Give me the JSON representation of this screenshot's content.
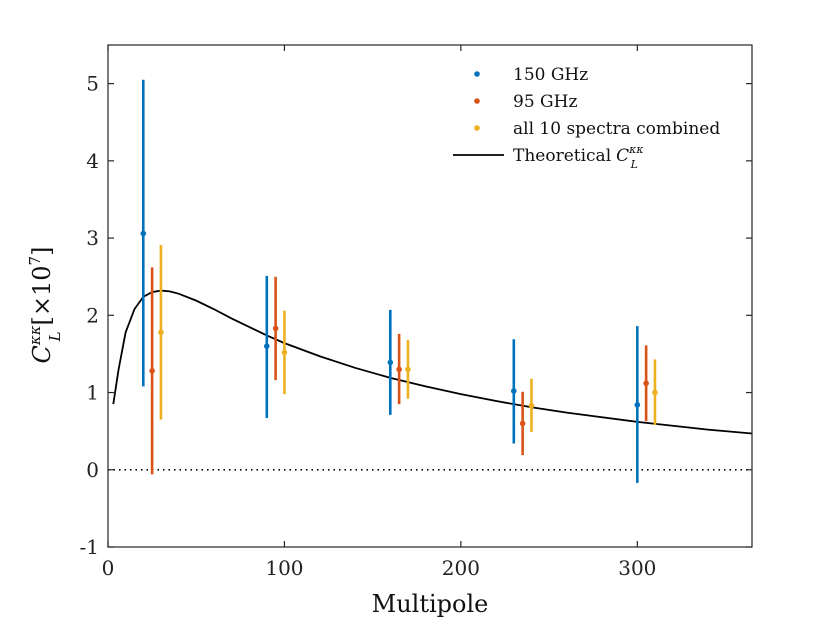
{
  "chart_data": {
    "type": "scatter",
    "title": "",
    "xlabel": "Multipole",
    "ylabel": {
      "symbol": "C",
      "superscript": "κκ",
      "subscript": "L",
      "bracket": "[×10",
      "exponent": "7",
      "close": "]"
    },
    "xlim": [
      0,
      365
    ],
    "ylim": [
      -1,
      5.5
    ],
    "xticks": [
      0,
      100,
      200,
      300
    ],
    "yticks": [
      -1,
      0,
      1,
      2,
      3,
      4,
      5
    ],
    "xtick_labels": [
      "0",
      "100",
      "200",
      "300"
    ],
    "ytick_labels": [
      "-1",
      "0",
      "1",
      "2",
      "3",
      "4",
      "5"
    ],
    "reference_line": {
      "y": 0,
      "style": "dotted"
    },
    "legend_position": "top-right",
    "series": [
      {
        "name": "150 GHz",
        "color": "#0072BD",
        "points": [
          {
            "x": 20,
            "y": 3.06,
            "lo": 1.08,
            "hi": 5.05
          },
          {
            "x": 90,
            "y": 1.6,
            "lo": 0.67,
            "hi": 2.51
          },
          {
            "x": 160,
            "y": 1.39,
            "lo": 0.71,
            "hi": 2.07
          },
          {
            "x": 230,
            "y": 1.02,
            "lo": 0.34,
            "hi": 1.69
          },
          {
            "x": 300,
            "y": 0.84,
            "lo": -0.17,
            "hi": 1.86
          }
        ]
      },
      {
        "name": "95 GHz",
        "color": "#D95319",
        "points": [
          {
            "x": 25,
            "y": 1.28,
            "lo": -0.06,
            "hi": 2.62
          },
          {
            "x": 95,
            "y": 1.83,
            "lo": 1.16,
            "hi": 2.5
          },
          {
            "x": 165,
            "y": 1.3,
            "lo": 0.85,
            "hi": 1.76
          },
          {
            "x": 235,
            "y": 0.6,
            "lo": 0.19,
            "hi": 1.01
          },
          {
            "x": 305,
            "y": 1.12,
            "lo": 0.63,
            "hi": 1.61
          }
        ]
      },
      {
        "name": "all 10 spectra combined",
        "color": "#EDB120",
        "points": [
          {
            "x": 30,
            "y": 1.78,
            "lo": 0.65,
            "hi": 2.91
          },
          {
            "x": 100,
            "y": 1.52,
            "lo": 0.98,
            "hi": 2.06
          },
          {
            "x": 170,
            "y": 1.3,
            "lo": 0.92,
            "hi": 1.68
          },
          {
            "x": 240,
            "y": 0.83,
            "lo": 0.49,
            "hi": 1.18
          },
          {
            "x": 310,
            "y": 1.0,
            "lo": 0.58,
            "hi": 1.43
          }
        ]
      }
    ],
    "theory": {
      "name": "Theoretical",
      "name_symbol": "C",
      "name_sup": "κκ",
      "name_sub": "L",
      "color": "#000000",
      "x": [
        3,
        6,
        10,
        15,
        20,
        25,
        30,
        35,
        40,
        50,
        60,
        70,
        80,
        90,
        100,
        120,
        140,
        160,
        180,
        200,
        220,
        240,
        260,
        280,
        300,
        320,
        340,
        365
      ],
      "y": [
        0.85,
        1.3,
        1.78,
        2.08,
        2.24,
        2.3,
        2.32,
        2.31,
        2.28,
        2.19,
        2.08,
        1.96,
        1.85,
        1.74,
        1.64,
        1.47,
        1.32,
        1.19,
        1.08,
        0.98,
        0.89,
        0.81,
        0.74,
        0.68,
        0.62,
        0.57,
        0.52,
        0.47
      ]
    }
  }
}
